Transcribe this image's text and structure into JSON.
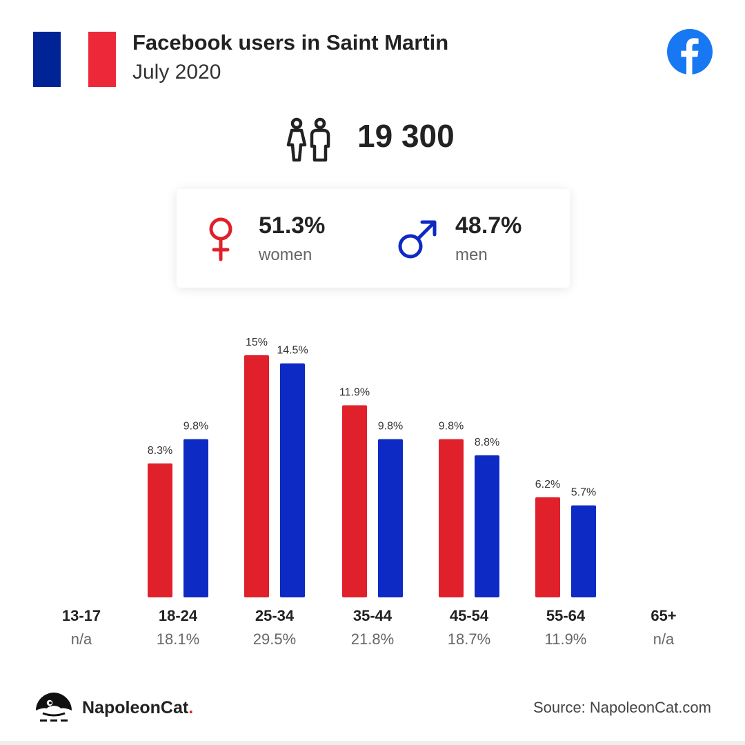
{
  "header": {
    "title": "Facebook users in Saint Martin",
    "subtitle": "July 2020"
  },
  "colors": {
    "flag_blue": "#002395",
    "flag_red": "#ED2939",
    "women": "#e0202a",
    "men": "#0d2ac4",
    "facebook": "#1877f2"
  },
  "icons": {
    "flag": "france-flag-icon",
    "brand": "facebook-logo-icon",
    "users": "people-icon",
    "women": "female-symbol-icon",
    "men": "male-symbol-icon",
    "footer": "napoleoncat-logo-icon"
  },
  "total_users": "19 300",
  "gender": {
    "women": {
      "pct": "51.3%",
      "label": "women"
    },
    "men": {
      "pct": "48.7%",
      "label": "men"
    }
  },
  "age_groups": [
    {
      "age": "13-17",
      "share": "n/a"
    },
    {
      "age": "18-24",
      "share": "18.1%"
    },
    {
      "age": "25-34",
      "share": "29.5%"
    },
    {
      "age": "35-44",
      "share": "21.8%"
    },
    {
      "age": "45-54",
      "share": "18.7%"
    },
    {
      "age": "55-64",
      "share": "11.9%"
    },
    {
      "age": "65+",
      "share": "n/a"
    }
  ],
  "chart_data": {
    "type": "bar",
    "categories": [
      "13-17",
      "18-24",
      "25-34",
      "35-44",
      "45-54",
      "55-64",
      "65+"
    ],
    "series": [
      {
        "values": [
          null,
          8.3,
          15,
          11.9,
          9.8,
          6.2,
          null
        ],
        "labels": [
          "",
          "8.3%",
          "15%",
          "11.9%",
          "9.8%",
          "6.2%",
          ""
        ],
        "color": "#e0202a"
      },
      {
        "values": [
          null,
          9.8,
          14.5,
          9.8,
          8.8,
          5.7,
          null
        ],
        "labels": [
          "",
          "9.8%",
          "14.5%",
          "9.8%",
          "8.8%",
          "5.7%",
          ""
        ],
        "color": "#0d2ac4"
      }
    ],
    "ylim": [
      0,
      15
    ],
    "grid": false,
    "legend": "none"
  },
  "footer": {
    "brand_name": "NapoleonCat",
    "brand_dot": ".",
    "source": "Source: NapoleonCat.com"
  }
}
